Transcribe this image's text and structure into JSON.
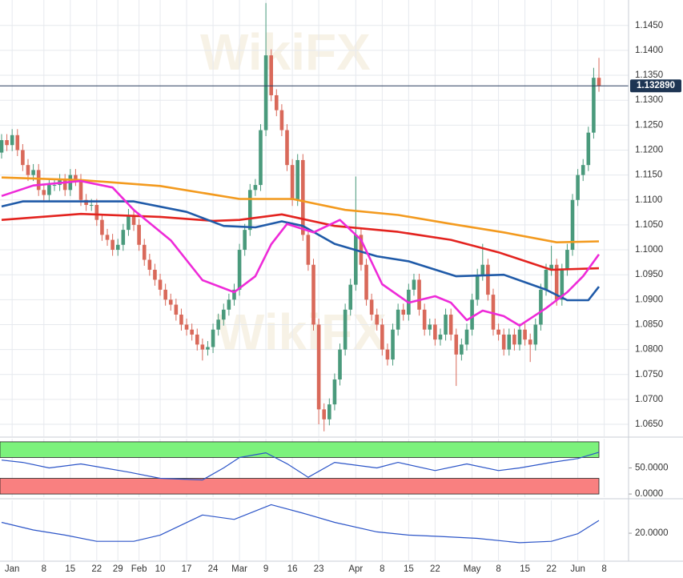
{
  "chart_data": [
    {
      "type": "candlestick",
      "watermark": "WikiFX",
      "grid": true,
      "up_color": "#4a9a7c",
      "down_color": "#d9695a",
      "xlim": [
        -0.3,
        118.6
      ],
      "xticks": [
        {
          "value": 2,
          "label": "Jan"
        },
        {
          "value": 8,
          "label": "8"
        },
        {
          "value": 13,
          "label": "15"
        },
        {
          "value": 18,
          "label": "22"
        },
        {
          "value": 22,
          "label": "29"
        },
        {
          "value": 26,
          "label": "Feb"
        },
        {
          "value": 30,
          "label": "10"
        },
        {
          "value": 35,
          "label": "17"
        },
        {
          "value": 40,
          "label": "24"
        },
        {
          "value": 45,
          "label": "Mar"
        },
        {
          "value": 50,
          "label": "9"
        },
        {
          "value": 55,
          "label": "16"
        },
        {
          "value": 60,
          "label": "23"
        },
        {
          "value": 67,
          "label": "Apr"
        },
        {
          "value": 72,
          "label": "8"
        },
        {
          "value": 77,
          "label": "15"
        },
        {
          "value": 82,
          "label": "22"
        },
        {
          "value": 89,
          "label": "May"
        },
        {
          "value": 94,
          "label": "8"
        },
        {
          "value": 99,
          "label": "15"
        },
        {
          "value": 104,
          "label": "22"
        },
        {
          "value": 109,
          "label": "Jun"
        },
        {
          "value": 114,
          "label": "8"
        }
      ],
      "ylim": [
        1.0626,
        1.1501
      ],
      "yticks": [
        {
          "value": 1.065,
          "label": "1.0650"
        },
        {
          "value": 1.07,
          "label": "1.0700"
        },
        {
          "value": 1.075,
          "label": "1.0750"
        },
        {
          "value": 1.08,
          "label": "1.0800"
        },
        {
          "value": 1.085,
          "label": "1.0850"
        },
        {
          "value": 1.09,
          "label": "1.0900"
        },
        {
          "value": 1.095,
          "label": "1.0950"
        },
        {
          "value": 1.1,
          "label": "1.1000"
        },
        {
          "value": 1.105,
          "label": "1.1050"
        },
        {
          "value": 1.11,
          "label": "1.1100"
        },
        {
          "value": 1.115,
          "label": "1.1150"
        },
        {
          "value": 1.12,
          "label": "1.1200"
        },
        {
          "value": 1.125,
          "label": "1.1250"
        },
        {
          "value": 1.13,
          "label": "1.1300"
        },
        {
          "value": 1.135,
          "label": "1.1350"
        },
        {
          "value": 1.14,
          "label": "1.1400"
        },
        {
          "value": 1.145,
          "label": "1.1450"
        }
      ],
      "last_price": {
        "value": 1.13289,
        "label": "1.132890"
      },
      "ohlc": [
        [
          1.1195,
          1.1232,
          1.1183,
          1.122
        ],
        [
          1.122,
          1.1232,
          1.1198,
          1.121
        ],
        [
          1.121,
          1.1242,
          1.1198,
          1.123
        ],
        [
          1.123,
          1.1242,
          1.1188,
          1.12
        ],
        [
          1.12,
          1.1212,
          1.1158,
          1.117
        ],
        [
          1.117,
          1.1182,
          1.1138,
          1.115
        ],
        [
          1.115,
          1.1172,
          1.1138,
          1.116
        ],
        [
          1.116,
          1.1172,
          1.1108,
          1.112
        ],
        [
          1.112,
          1.1132,
          1.1098,
          1.111
        ],
        [
          1.111,
          1.1142,
          1.1098,
          1.113
        ],
        [
          1.113,
          1.1142,
          1.1118,
          1.113
        ],
        [
          1.113,
          1.1152,
          1.1118,
          1.114
        ],
        [
          1.114,
          1.1152,
          1.1108,
          1.112
        ],
        [
          1.112,
          1.1162,
          1.1108,
          1.115
        ],
        [
          1.115,
          1.1162,
          1.1128,
          1.114
        ],
        [
          1.114,
          1.1152,
          1.1088,
          1.11
        ],
        [
          1.11,
          1.1112,
          1.1078,
          1.109
        ],
        [
          1.109,
          1.1102,
          1.1078,
          1.109
        ],
        [
          1.109,
          1.1102,
          1.1048,
          1.106
        ],
        [
          1.106,
          1.1072,
          1.1018,
          1.103
        ],
        [
          1.103,
          1.1042,
          1.1008,
          1.102
        ],
        [
          1.102,
          1.1032,
          1.0988,
          1.1
        ],
        [
          1.1,
          1.1022,
          1.0988,
          1.101
        ],
        [
          1.101,
          1.1052,
          1.0998,
          1.104
        ],
        [
          1.104,
          1.1082,
          1.1028,
          1.107
        ],
        [
          1.107,
          1.1082,
          1.1038,
          1.105
        ],
        [
          1.105,
          1.1062,
          1.0998,
          1.101
        ],
        [
          1.101,
          1.1022,
          1.0968,
          1.098
        ],
        [
          1.098,
          1.0992,
          1.0948,
          1.096
        ],
        [
          1.096,
          1.0972,
          1.0928,
          1.094
        ],
        [
          1.094,
          1.0952,
          1.0908,
          1.092
        ],
        [
          1.092,
          1.0932,
          1.0888,
          1.09
        ],
        [
          1.09,
          1.0912,
          1.0878,
          1.089
        ],
        [
          1.089,
          1.0902,
          1.0858,
          1.087
        ],
        [
          1.087,
          1.0882,
          1.0838,
          1.085
        ],
        [
          1.085,
          1.0862,
          1.0828,
          1.084
        ],
        [
          1.084,
          1.0852,
          1.0818,
          1.083
        ],
        [
          1.083,
          1.0842,
          1.0798,
          1.081
        ],
        [
          1.081,
          1.0822,
          1.0778,
          1.08
        ],
        [
          1.08,
          1.0817,
          1.0788,
          1.0805
        ],
        [
          1.0805,
          1.0852,
          1.0793,
          1.084
        ],
        [
          1.084,
          1.0872,
          1.0828,
          1.086
        ],
        [
          1.086,
          1.0892,
          1.0848,
          1.088
        ],
        [
          1.088,
          1.0912,
          1.0868,
          1.09
        ],
        [
          1.09,
          1.0932,
          1.0888,
          1.092
        ],
        [
          1.092,
          1.1012,
          1.0908,
          1.1
        ],
        [
          1.1,
          1.1052,
          1.0988,
          1.104
        ],
        [
          1.104,
          1.1132,
          1.1028,
          1.112
        ],
        [
          1.112,
          1.1142,
          1.1108,
          1.113
        ],
        [
          1.113,
          1.1252,
          1.1118,
          1.124
        ],
        [
          1.124,
          1.1495,
          1.1228,
          1.139
        ],
        [
          1.139,
          1.1402,
          1.1298,
          1.131
        ],
        [
          1.131,
          1.1322,
          1.1268,
          1.128
        ],
        [
          1.128,
          1.1292,
          1.1228,
          1.124
        ],
        [
          1.124,
          1.1252,
          1.1158,
          1.117
        ],
        [
          1.117,
          1.1182,
          1.1088,
          1.11
        ],
        [
          1.11,
          1.1192,
          1.1088,
          1.118
        ],
        [
          1.118,
          1.1192,
          1.1018,
          1.103
        ],
        [
          1.103,
          1.1042,
          1.0958,
          1.097
        ],
        [
          1.097,
          1.0982,
          1.0838,
          1.085
        ],
        [
          1.085,
          1.0862,
          1.065,
          1.068
        ],
        [
          1.068,
          1.0692,
          1.0636,
          1.066
        ],
        [
          1.066,
          1.0702,
          1.0648,
          1.069
        ],
        [
          1.069,
          1.0752,
          1.0678,
          1.074
        ],
        [
          1.074,
          1.0812,
          1.0728,
          1.08
        ],
        [
          1.08,
          1.0892,
          1.0788,
          1.088
        ],
        [
          1.088,
          1.0942,
          1.0868,
          1.093
        ],
        [
          1.093,
          1.1147,
          1.0918,
          1.103
        ],
        [
          1.103,
          1.1042,
          1.0958,
          1.097
        ],
        [
          1.097,
          1.0982,
          1.0888,
          1.09
        ],
        [
          1.09,
          1.0912,
          1.0858,
          1.087
        ],
        [
          1.087,
          1.0882,
          1.0838,
          1.085
        ],
        [
          1.085,
          1.0862,
          1.0788,
          1.08
        ],
        [
          1.08,
          1.0812,
          1.0768,
          1.078
        ],
        [
          1.078,
          1.0852,
          1.0768,
          1.084
        ],
        [
          1.084,
          1.0892,
          1.0828,
          1.088
        ],
        [
          1.088,
          1.0892,
          1.0858,
          1.087
        ],
        [
          1.087,
          1.0932,
          1.0858,
          1.092
        ],
        [
          1.092,
          1.0952,
          1.0908,
          1.094
        ],
        [
          1.094,
          1.0952,
          1.0868,
          1.088
        ],
        [
          1.088,
          1.0892,
          1.0828,
          1.084
        ],
        [
          1.084,
          1.0862,
          1.0828,
          1.085
        ],
        [
          1.085,
          1.0862,
          1.0808,
          1.082
        ],
        [
          1.082,
          1.0842,
          1.0808,
          1.083
        ],
        [
          1.083,
          1.0882,
          1.0818,
          1.087
        ],
        [
          1.087,
          1.0882,
          1.0818,
          1.083
        ],
        [
          1.083,
          1.0842,
          1.0727,
          1.079
        ],
        [
          1.079,
          1.0822,
          1.0778,
          1.081
        ],
        [
          1.081,
          1.0852,
          1.0798,
          1.084
        ],
        [
          1.084,
          1.0912,
          1.0828,
          1.09
        ],
        [
          1.09,
          1.0962,
          1.0888,
          1.095
        ],
        [
          1.095,
          1.1012,
          1.0938,
          1.097
        ],
        [
          1.097,
          1.0982,
          1.0898,
          1.091
        ],
        [
          1.091,
          1.0922,
          1.0828,
          1.084
        ],
        [
          1.084,
          1.0852,
          1.0818,
          1.083
        ],
        [
          1.083,
          1.0842,
          1.0788,
          1.08
        ],
        [
          1.08,
          1.0842,
          1.0788,
          1.083
        ],
        [
          1.083,
          1.0842,
          1.0798,
          1.081
        ],
        [
          1.081,
          1.0852,
          1.0798,
          1.084
        ],
        [
          1.084,
          1.0852,
          1.0808,
          1.082
        ],
        [
          1.082,
          1.0832,
          1.0775,
          1.081
        ],
        [
          1.081,
          1.0862,
          1.0798,
          1.085
        ],
        [
          1.085,
          1.0932,
          1.0838,
          1.092
        ],
        [
          1.092,
          1.0972,
          1.0908,
          1.096
        ],
        [
          1.096,
          1.1008,
          1.0948,
          1.097
        ],
        [
          1.097,
          1.0982,
          1.0888,
          1.09
        ],
        [
          1.09,
          1.0972,
          1.0888,
          1.096
        ],
        [
          1.096,
          1.1012,
          1.0948,
          1.1
        ],
        [
          1.1,
          1.1112,
          1.0988,
          1.11
        ],
        [
          1.11,
          1.1162,
          1.1088,
          1.115
        ],
        [
          1.115,
          1.1182,
          1.1138,
          1.117
        ],
        [
          1.117,
          1.1247,
          1.1158,
          1.1235
        ],
        [
          1.1235,
          1.1365,
          1.1223,
          1.1345
        ],
        [
          1.1345,
          1.1385,
          1.1317,
          1.1329
        ]
      ],
      "series": [
        {
          "color": "#f39a1e",
          "x": [
            0,
            15,
            30,
            45,
            55,
            65,
            75,
            85,
            95,
            105,
            113
          ],
          "values": [
            1.1145,
            1.114,
            1.1128,
            1.1102,
            1.1102,
            1.108,
            1.107,
            1.1052,
            1.1035,
            1.1015,
            1.1017
          ]
        },
        {
          "color": "#e3231f",
          "x": [
            0,
            15,
            30,
            40,
            45,
            53,
            63,
            75,
            85,
            94,
            104,
            113
          ],
          "values": [
            1.106,
            1.1072,
            1.1066,
            1.1058,
            1.106,
            1.1071,
            1.1048,
            1.1036,
            1.102,
            1.0995,
            1.096,
            1.0963
          ]
        },
        {
          "color": "#1f5aa8",
          "x": [
            0,
            4,
            15,
            25,
            35,
            42,
            48,
            53,
            57,
            63,
            71,
            77,
            86,
            95,
            103,
            107,
            111,
            113
          ],
          "values": [
            1.1087,
            1.1097,
            1.1097,
            1.1097,
            1.1076,
            1.1048,
            1.1045,
            1.1057,
            1.1048,
            1.1012,
            1.0987,
            1.0977,
            1.0947,
            1.095,
            1.092,
            1.0899,
            1.0899,
            1.0926
          ]
        },
        {
          "color": "#ee2ad8",
          "x": [
            0,
            6,
            15,
            21,
            25,
            32,
            38,
            44,
            48,
            51,
            54,
            59,
            64,
            68,
            72,
            77,
            82,
            85,
            88,
            91,
            95,
            98,
            103,
            107,
            110,
            113
          ],
          "values": [
            1.1108,
            1.1129,
            1.1138,
            1.1125,
            1.108,
            1.1019,
            1.0939,
            1.0915,
            1.0947,
            1.1011,
            1.1052,
            1.1035,
            1.106,
            1.102,
            1.0931,
            1.0894,
            1.0907,
            1.0894,
            1.0859,
            1.0878,
            1.0867,
            1.0848,
            1.0883,
            1.0915,
            1.0947,
            1.0991
          ]
        }
      ]
    },
    {
      "type": "line",
      "ylim": [
        -6,
        106
      ],
      "yticks": [
        {
          "value": 0,
          "label": "0.0000"
        },
        {
          "value": 50,
          "label": "50.0000"
        }
      ],
      "bands": [
        {
          "from": 70,
          "to": 100,
          "color": "#7cf27c"
        },
        {
          "from": 0,
          "to": 30,
          "color": "#f98080"
        }
      ],
      "series": [
        {
          "color": "#2c55c8",
          "x": [
            0,
            4,
            9,
            15,
            24,
            30,
            38,
            42,
            45,
            50,
            54,
            58,
            63,
            71,
            75,
            82,
            88,
            94,
            98,
            104,
            109,
            113
          ],
          "values": [
            65,
            60.6,
            50,
            57.6,
            42,
            30,
            27,
            50,
            70,
            79,
            58,
            32,
            60.6,
            50,
            60.6,
            45,
            57.6,
            45,
            50,
            60.6,
            68,
            80
          ]
        }
      ]
    },
    {
      "type": "line",
      "ylim": [
        10,
        32.1
      ],
      "yticks": [
        {
          "value": 20,
          "label": "20.0000"
        }
      ],
      "series": [
        {
          "color": "#2c55c8",
          "x": [
            0,
            6,
            12,
            18,
            25,
            30,
            38,
            44,
            51,
            57,
            63,
            71,
            77,
            83,
            90,
            98,
            104,
            109,
            113
          ],
          "values": [
            24,
            21.2,
            19.3,
            17,
            17,
            19.3,
            26.7,
            25.1,
            30.5,
            27.4,
            24,
            20.5,
            19.3,
            18.8,
            18.1,
            16.5,
            17,
            19.8,
            24.7
          ]
        }
      ]
    }
  ]
}
